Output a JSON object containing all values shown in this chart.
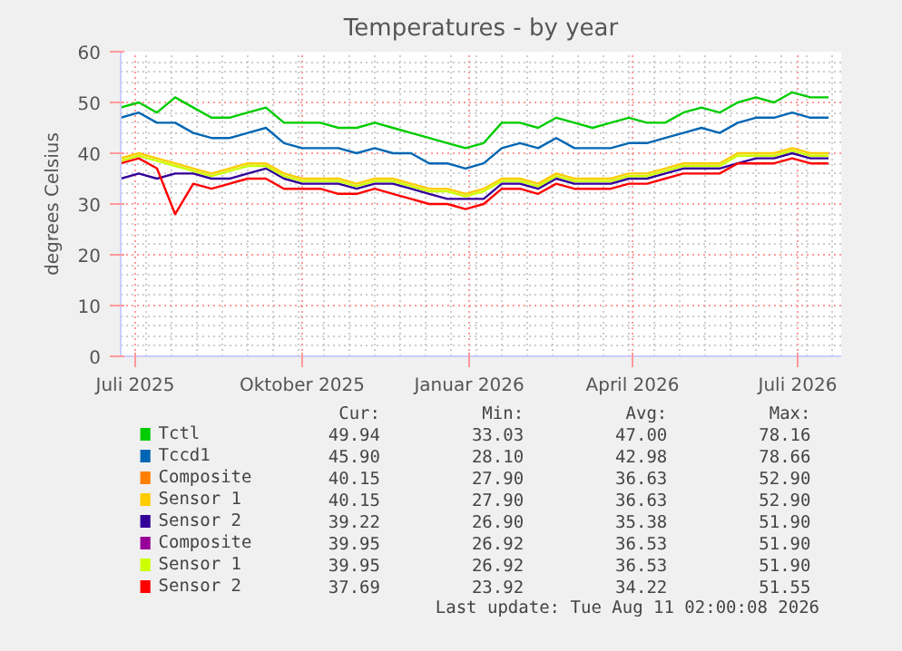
{
  "chart_data": {
    "type": "line",
    "title": "Temperatures - by year",
    "ylabel": "degrees Celsius",
    "x": [
      "2025-06-23",
      "2025-07-03",
      "2025-07-13",
      "2025-07-23",
      "2025-08-02",
      "2025-08-12",
      "2025-08-22",
      "2025-09-01",
      "2025-09-11",
      "2025-09-21",
      "2025-10-01",
      "2025-10-11",
      "2025-10-21",
      "2025-10-31",
      "2025-11-10",
      "2025-11-20",
      "2025-11-30",
      "2025-12-10",
      "2025-12-20",
      "2025-12-30",
      "2026-01-09",
      "2026-01-19",
      "2026-01-29",
      "2026-02-08",
      "2026-02-18",
      "2026-02-28",
      "2026-03-10",
      "2026-03-20",
      "2026-03-30",
      "2026-04-09",
      "2026-04-19",
      "2026-04-29",
      "2026-05-09",
      "2026-05-19",
      "2026-05-29",
      "2026-06-08",
      "2026-06-18",
      "2026-06-28",
      "2026-07-08",
      "2026-07-18"
    ],
    "series": [
      {
        "name": "Tctl",
        "color": "#00cc00",
        "values": [
          49,
          50,
          48,
          51,
          49,
          47,
          47,
          48,
          49,
          46,
          46,
          46,
          45,
          45,
          46,
          45,
          44,
          43,
          42,
          41,
          42,
          46,
          46,
          45,
          47,
          46,
          45,
          46,
          47,
          46,
          46,
          48,
          49,
          48,
          50,
          51,
          50,
          52,
          51,
          51
        ]
      },
      {
        "name": "Tccd1",
        "color": "#0066b3",
        "values": [
          47,
          48,
          46,
          46,
          44,
          43,
          43,
          44,
          45,
          42,
          41,
          41,
          41,
          40,
          41,
          40,
          40,
          38,
          38,
          37,
          38,
          41,
          42,
          41,
          43,
          41,
          41,
          41,
          42,
          42,
          43,
          44,
          45,
          44,
          46,
          47,
          47,
          48,
          47,
          47
        ]
      },
      {
        "name": "Composite",
        "color": "#ff8000",
        "values": [
          null,
          null,
          null,
          null,
          null,
          null,
          null,
          null,
          null,
          null,
          null,
          null,
          null,
          null,
          null,
          null,
          null,
          null,
          null,
          null,
          null,
          null,
          null,
          null,
          null,
          null,
          null,
          null,
          null,
          null,
          null,
          null,
          null,
          null,
          null,
          null,
          null,
          null,
          null,
          null
        ]
      },
      {
        "name": "Sensor 1",
        "color": "#ffcc00",
        "values": [
          39,
          40,
          39,
          38,
          37,
          36,
          37,
          38,
          38,
          36,
          35,
          35,
          35,
          34,
          35,
          35,
          34,
          33,
          33,
          32,
          33,
          35,
          35,
          34,
          36,
          35,
          35,
          35,
          36,
          36,
          37,
          38,
          38,
          38,
          40,
          40,
          40,
          41,
          40,
          40
        ]
      },
      {
        "name": "Sensor 2",
        "color": "#330099",
        "values": [
          35,
          36,
          35,
          36,
          36,
          35,
          35,
          36,
          37,
          35,
          34,
          34,
          34,
          33,
          34,
          34,
          33,
          32,
          31,
          31,
          31,
          34,
          34,
          33,
          35,
          34,
          34,
          34,
          35,
          35,
          36,
          37,
          37,
          37,
          38,
          39,
          39,
          40,
          39,
          39
        ]
      },
      {
        "name": "Composite",
        "color": "#990099",
        "values": [
          null,
          null,
          null,
          null,
          null,
          null,
          null,
          null,
          null,
          null,
          null,
          null,
          null,
          null,
          null,
          null,
          null,
          null,
          null,
          null,
          null,
          null,
          null,
          null,
          null,
          null,
          null,
          null,
          null,
          null,
          null,
          null,
          null,
          null,
          null,
          null,
          null,
          null,
          null,
          null
        ]
      },
      {
        "name": "Sensor 1",
        "color": "#ccff00",
        "values": [
          38.5,
          39.5,
          38.5,
          37.5,
          36.5,
          35.5,
          36.5,
          37.5,
          37.5,
          35.5,
          34.5,
          34.5,
          34.5,
          33.5,
          34.5,
          34.5,
          33.5,
          32.5,
          32.5,
          31.5,
          32.5,
          34.5,
          34.5,
          33.5,
          35.5,
          34.5,
          34.5,
          34.5,
          35.5,
          35.5,
          36.5,
          37.5,
          37.5,
          37.5,
          39.5,
          39.5,
          39.5,
          40.5,
          39.5,
          39.5
        ]
      },
      {
        "name": "Sensor 2",
        "color": "#ff0000",
        "values": [
          38,
          39,
          37,
          28,
          34,
          33,
          34,
          35,
          35,
          33,
          33,
          33,
          32,
          32,
          33,
          32,
          31,
          30,
          30,
          29,
          30,
          33,
          33,
          32,
          34,
          33,
          33,
          33,
          34,
          34,
          35,
          36,
          36,
          36,
          38,
          38,
          38,
          39,
          38,
          38
        ]
      }
    ],
    "xlim": [
      "2025-06-23",
      "2026-07-25"
    ],
    "xticks": [
      {
        "value": "2025-07-01",
        "label": "Juli 2025"
      },
      {
        "value": "2025-10-01",
        "label": "Oktober 2025"
      },
      {
        "value": "2026-01-01",
        "label": "Januar 2026"
      },
      {
        "value": "2026-04-01",
        "label": "April 2026"
      },
      {
        "value": "2026-07-01",
        "label": "Juli 2026"
      }
    ],
    "ylim": [
      0,
      60
    ],
    "yticks": [
      0,
      10,
      20,
      30,
      40,
      50,
      60
    ],
    "grid": true,
    "legend": "bottom",
    "annotations": [
      "Cur:",
      "Min:",
      "Avg:",
      "Max:",
      "49.94",
      "33.03",
      "47.00",
      "78.16",
      "45.90",
      "28.10",
      "42.98",
      "78.66",
      "40.15",
      "27.90",
      "36.63",
      "52.90",
      "40.15",
      "27.90",
      "36.63",
      "52.90",
      "39.22",
      "26.90",
      "35.38",
      "51.90",
      "39.95",
      "26.92",
      "36.53",
      "51.90",
      "39.95",
      "26.92",
      "36.53",
      "51.90",
      "37.69",
      "23.92",
      "34.22",
      "51.55",
      "Last update: Tue Aug 11 02:00:08 2026"
    ]
  }
}
